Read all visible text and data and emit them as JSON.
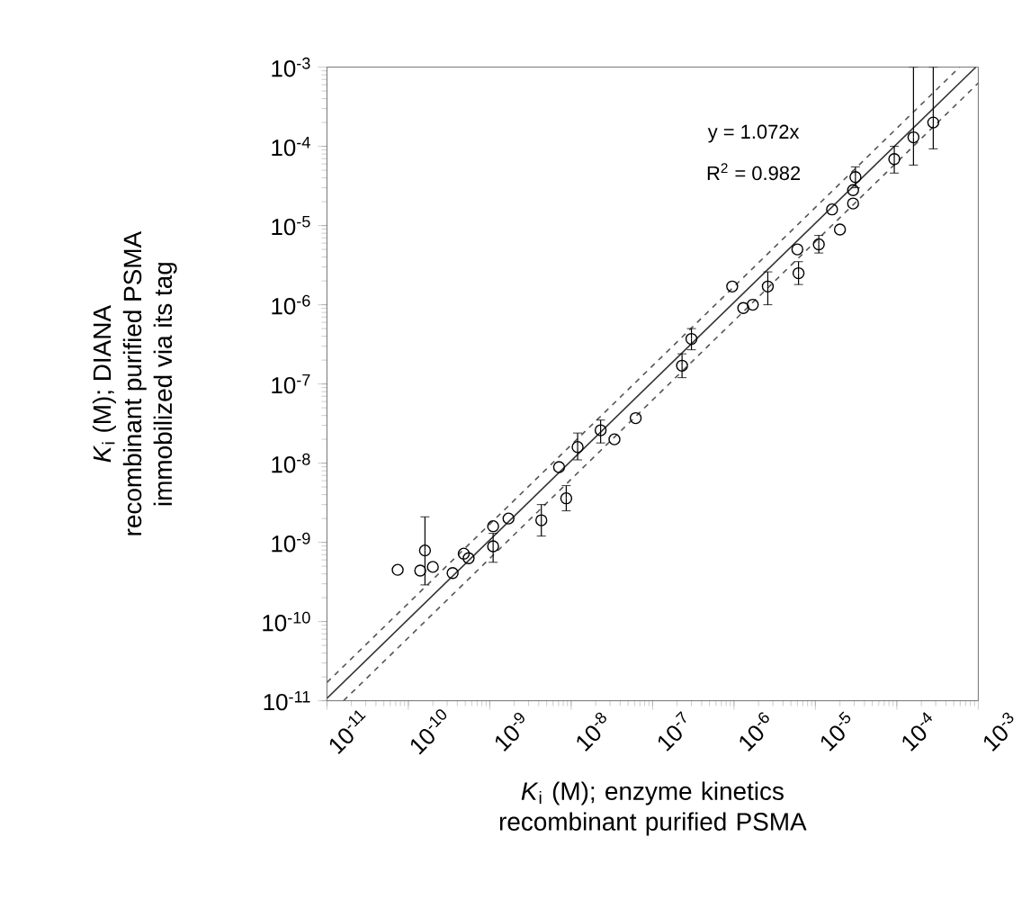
{
  "chart_data": {
    "type": "scatter",
    "log": "xy",
    "marker": "circle",
    "xlabel": "*K*$_{i}$ (M); enzyme kinetics recombinant purified PSMA",
    "ylabel": "*K*$_{i}$ (M); DIANA\nrecombinant purified PSMA\nimmobilized via its tag",
    "annotations": [
      "y = 1.072x",
      "R$^{2}$ = 0.982"
    ],
    "xlim": [
      1e-11,
      0.001
    ],
    "ylim": [
      1e-11,
      0.001
    ],
    "xticks": [
      {
        "value": 1e-11,
        "label": "10$^{-11}$"
      },
      {
        "value": 1e-10,
        "label": "10$^{-10}$"
      },
      {
        "value": 1e-09,
        "label": "10$^{-9}$"
      },
      {
        "value": 1e-08,
        "label": "10$^{-8}$"
      },
      {
        "value": 1e-07,
        "label": "10$^{-7}$"
      },
      {
        "value": 1e-06,
        "label": "10$^{-6}$"
      },
      {
        "value": 1e-05,
        "label": "10$^{-5}$"
      },
      {
        "value": 0.0001,
        "label": "10$^{-4}$"
      },
      {
        "value": 0.001,
        "label": "10$^{-3}$"
      }
    ],
    "yticks": [
      {
        "value": 1e-11,
        "label": "10$^{-11}$"
      },
      {
        "value": 1e-10,
        "label": "10$^{-10}$"
      },
      {
        "value": 1e-09,
        "label": "10$^{-9}$"
      },
      {
        "value": 1e-08,
        "label": "10$^{-8}$"
      },
      {
        "value": 1e-07,
        "label": "10$^{-7}$"
      },
      {
        "value": 1e-06,
        "label": "10$^{-6}$"
      },
      {
        "value": 1e-05,
        "label": "10$^{-5}$"
      },
      {
        "value": 0.0001,
        "label": "10$^{-4}$"
      },
      {
        "value": 0.001,
        "label": "10$^{-3}$"
      }
    ],
    "series": [
      {
        "color": "#000000",
        "x": [
          7.4e-11,
          1.4e-10,
          1.6e-10,
          2e-10,
          3.5e-10,
          4.8e-10,
          5.5e-10,
          1.1e-09,
          1.1e-09,
          1.7e-09,
          4.3e-09,
          7.1e-09,
          8.7e-09,
          1.2e-08,
          2.3e-08,
          3.4e-08,
          6.2e-08,
          2.3e-07,
          3e-07,
          9.5e-07,
          1.3e-06,
          1.7e-06,
          2.6e-06,
          6e-06,
          6.2e-06,
          1.1e-05,
          2e-05,
          1.6e-05,
          2.9e-05,
          2.9e-05,
          3.1e-05,
          9.3e-05,
          0.00016,
          0.00028
        ],
        "values": [
          4.5e-10,
          4.4e-10,
          7.9e-10,
          4.9e-10,
          4.1e-10,
          7.2e-10,
          6.3e-10,
          1.6e-09,
          8.9e-10,
          2e-09,
          1.9e-09,
          8.9e-09,
          3.6e-09,
          1.6e-08,
          2.6e-08,
          2e-08,
          3.7e-08,
          1.7e-07,
          3.7e-07,
          1.7e-06,
          9.1e-07,
          1e-06,
          1.7e-06,
          5e-06,
          2.5e-06,
          5.8e-06,
          8.9e-06,
          1.6e-05,
          1.9e-05,
          2.8e-05,
          4.1e-05,
          6.9e-05,
          0.00013,
          0.0002
        ],
        "errors": [
          null,
          null,
          [
            2.9e-10,
            2.1e-09
          ],
          null,
          null,
          null,
          null,
          null,
          [
            5.6e-10,
            1.3e-09
          ],
          null,
          [
            1.2e-09,
            3e-09
          ],
          null,
          [
            2.5e-09,
            5.2e-09
          ],
          [
            1.1e-08,
            2.4e-08
          ],
          [
            1.8e-08,
            3.5e-08
          ],
          null,
          null,
          [
            1.2e-07,
            2.4e-07
          ],
          [
            2.7e-07,
            5e-07
          ],
          null,
          null,
          null,
          [
            1e-06,
            2.6e-06
          ],
          null,
          [
            1.8e-06,
            3.5e-06
          ],
          [
            4.5e-06,
            7.5e-06
          ],
          null,
          null,
          null,
          null,
          [
            3e-05,
            5.5e-05
          ],
          [
            4.6e-05,
            0.0001
          ],
          [
            5.8e-05,
            0.001
          ],
          [
            9.3e-05,
            0.001
          ]
        ]
      },
      {
        "type": "line",
        "color": "#333333",
        "line_style": "solid",
        "marker": "none",
        "x": [
          1e-11,
          0.00093
        ],
        "values": [
          1.072e-11,
          0.000997
        ]
      },
      {
        "type": "line",
        "color": "#555555",
        "line_style": "dashed",
        "marker": "none",
        "x": [
          1e-11,
          0.00059
        ],
        "values": [
          1.7e-11,
          0.001
        ]
      },
      {
        "type": "line",
        "color": "#555555",
        "line_style": "dashed",
        "marker": "none",
        "x": [
          1.6e-11,
          0.001
        ],
        "values": [
          1e-11,
          0.00063
        ]
      }
    ]
  }
}
